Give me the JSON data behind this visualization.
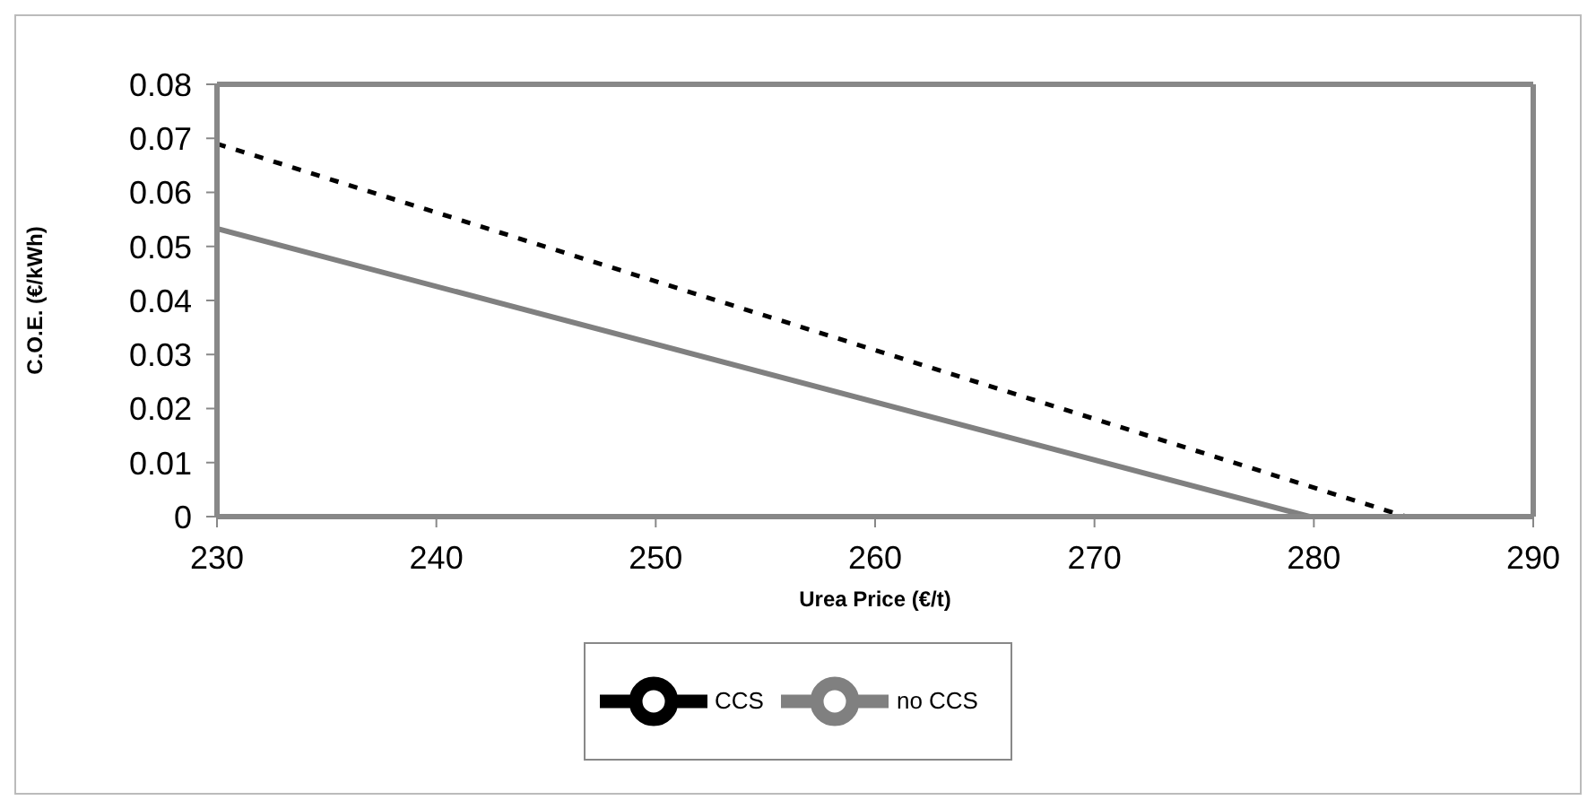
{
  "chart_data": {
    "type": "line",
    "xlabel": "Urea Price (€/t)",
    "ylabel": "C.O.E. (€/kWh)",
    "series": [
      {
        "name": "no CCS",
        "color": "#808080",
        "line_style": "solid",
        "x": [
          230,
          279.8
        ],
        "values": [
          0.0533,
          0
        ]
      },
      {
        "name": "CCS",
        "color": "#000000",
        "line_style": "dashed",
        "x": [
          230,
          284.2
        ],
        "values": [
          0.069,
          0
        ]
      }
    ],
    "xlim": [
      230,
      290
    ],
    "xticks": [
      230,
      240,
      250,
      260,
      270,
      280,
      290
    ],
    "ylim": [
      0,
      0.08
    ],
    "yticks": [
      0,
      0.01,
      0.02,
      0.03,
      0.04,
      0.05,
      0.06,
      0.07,
      0.08
    ],
    "legend": "bottom",
    "marker": "none"
  }
}
